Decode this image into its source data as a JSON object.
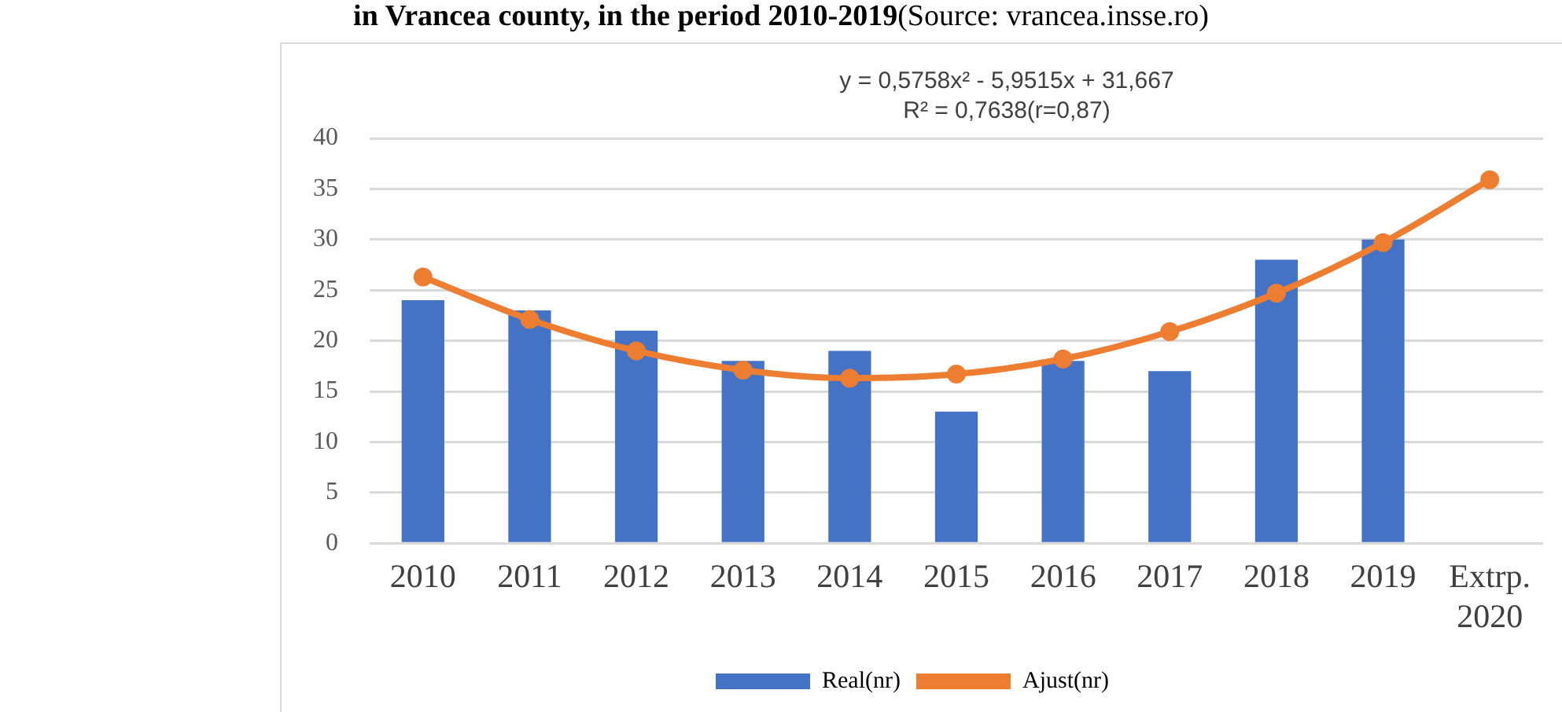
{
  "chart_data": {
    "type": "bar",
    "title": "in Vrancea county, in the period 2010-2019",
    "annotations": [
      "(Source: vrancea.insse.ro)",
      "y = 0,5758x² - 5,9515x + 31,667",
      "R² = 0,7638(r=0,87)"
    ],
    "categories": [
      "2010",
      "2011",
      "2012",
      "2013",
      "2014",
      "2015",
      "2016",
      "2017",
      "2018",
      "2019",
      "Extrp. 2020"
    ],
    "series": [
      {
        "name": "Real(nr)",
        "color": "#4472c4",
        "values": [
          24,
          23,
          21,
          18,
          19,
          13,
          18,
          17,
          28,
          30,
          null
        ]
      },
      {
        "name": "Ajust(nr)",
        "type": "line",
        "color": "#ed7d31",
        "values": [
          26.3,
          22.1,
          19.0,
          17.1,
          16.3,
          16.7,
          18.2,
          20.9,
          24.7,
          29.7,
          35.9
        ]
      }
    ],
    "ylim": [
      0,
      40
    ],
    "yticks": [
      0,
      5,
      10,
      15,
      20,
      25,
      30,
      35,
      40
    ],
    "grid": "y",
    "legend": "bottom",
    "marker": "circle",
    "line_style": "solid"
  }
}
